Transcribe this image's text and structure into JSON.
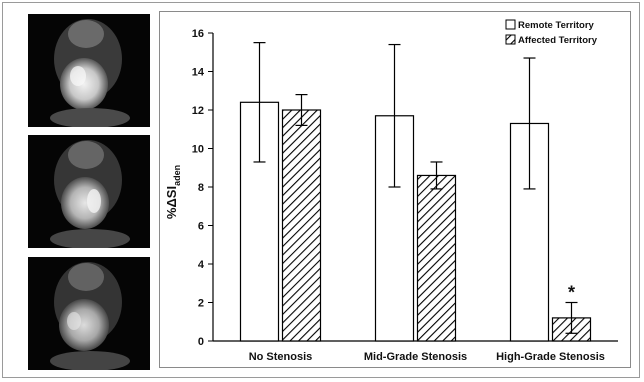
{
  "images": [
    {
      "name": "mri-image-1"
    },
    {
      "name": "mri-image-2"
    },
    {
      "name": "mri-image-3"
    }
  ],
  "chart_data": {
    "type": "bar",
    "categories": [
      "No Stenosis",
      "Mid-Grade Stenosis",
      "High-Grade Stenosis"
    ],
    "series": [
      {
        "name": "Remote Territory",
        "values": [
          12.4,
          11.7,
          11.3
        ],
        "error": [
          3.1,
          3.7,
          3.4
        ],
        "fill": "#ffffff",
        "pattern": "none"
      },
      {
        "name": "Affected Territory",
        "values": [
          12.0,
          8.6,
          1.2
        ],
        "error": [
          0.8,
          0.7,
          0.8
        ],
        "fill": "#ffffff",
        "pattern": "diagonal-hatch"
      }
    ],
    "ylabel": "%ΔSI",
    "ylabel_subscript": "aden",
    "ylim": [
      0,
      16
    ],
    "yticks": [
      "0",
      "2",
      "4",
      "6",
      "8",
      "10",
      "12",
      "14",
      "16"
    ],
    "grid": false,
    "legend_position": "top-right",
    "annotations": [
      {
        "text": "*",
        "category": "High-Grade Stenosis",
        "series": "Affected Territory"
      }
    ],
    "colors": {
      "axis": "#000000",
      "bar_stroke": "#000000",
      "hatch": "#000000"
    }
  }
}
